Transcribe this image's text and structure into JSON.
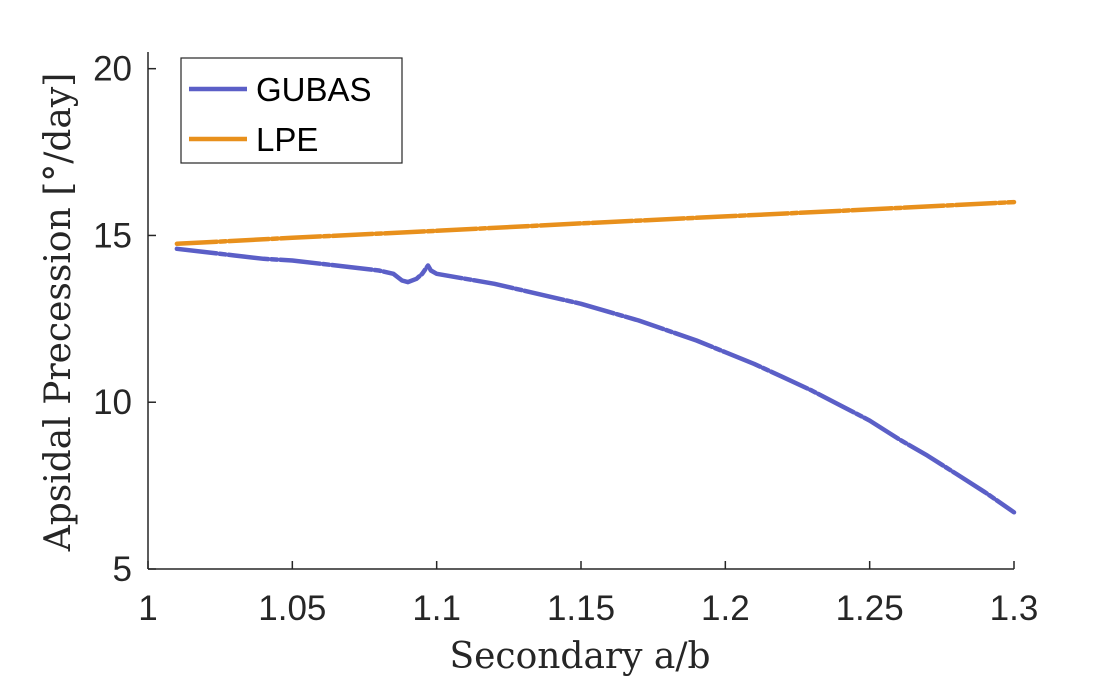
{
  "chart_data": {
    "type": "line",
    "xlabel": "Secondary a/b",
    "ylabel": "Apsidal Precession [°/day]",
    "xlim": [
      1,
      1.3
    ],
    "ylim": [
      5,
      20.5
    ],
    "xticks": [
      "1",
      "1.05",
      "1.1",
      "1.15",
      "1.2",
      "1.25",
      "1.3"
    ],
    "yticks": [
      "5",
      "10",
      "15",
      "20"
    ],
    "grid": false,
    "legend_position": "top-left",
    "series": [
      {
        "name": "GUBAS",
        "color": "#5b5fc7",
        "x": [
          1.01,
          1.02,
          1.03,
          1.04,
          1.05,
          1.06,
          1.07,
          1.08,
          1.085,
          1.088,
          1.09,
          1.093,
          1.095,
          1.097,
          1.098,
          1.1,
          1.11,
          1.12,
          1.13,
          1.14,
          1.15,
          1.16,
          1.17,
          1.18,
          1.19,
          1.2,
          1.21,
          1.22,
          1.23,
          1.24,
          1.25,
          1.26,
          1.27,
          1.28,
          1.29,
          1.3
        ],
        "y": [
          14.6,
          14.5,
          14.4,
          14.3,
          14.25,
          14.15,
          14.05,
          13.95,
          13.85,
          13.65,
          13.6,
          13.7,
          13.85,
          14.1,
          13.95,
          13.85,
          13.7,
          13.55,
          13.35,
          13.15,
          12.95,
          12.7,
          12.45,
          12.15,
          11.85,
          11.5,
          11.15,
          10.75,
          10.35,
          9.9,
          9.45,
          8.9,
          8.4,
          7.85,
          7.3,
          6.7
        ]
      },
      {
        "name": "LPE",
        "color": "#e8901c",
        "x": [
          1.01,
          1.05,
          1.1,
          1.15,
          1.2,
          1.25,
          1.3
        ],
        "y": [
          14.75,
          14.93,
          15.14,
          15.36,
          15.57,
          15.78,
          16.0
        ]
      }
    ]
  }
}
